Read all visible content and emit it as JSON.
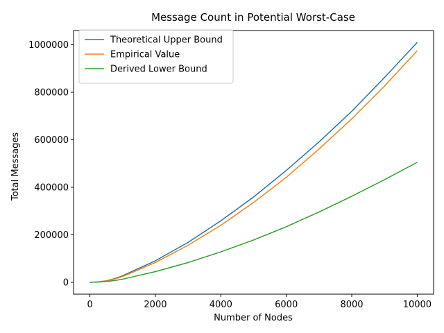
{
  "chart_data": {
    "type": "line",
    "title": "Message Count in Potential Worst-Case",
    "xlabel": "Number of Nodes",
    "ylabel": "Total Messages",
    "xlim": [
      -500,
      10500
    ],
    "ylim": [
      -50000,
      1060000
    ],
    "xticks": [
      0,
      2000,
      4000,
      6000,
      8000,
      10000
    ],
    "yticks": [
      0,
      200000,
      400000,
      600000,
      800000,
      1000000
    ],
    "grid": false,
    "legend_position": "top-left",
    "x": [
      0,
      100,
      200,
      300,
      400,
      500,
      600,
      700,
      800,
      900,
      1000,
      2000,
      3000,
      4000,
      5000,
      6000,
      7000,
      8000,
      9000,
      10000
    ],
    "series": [
      {
        "name": "Theoretical Upper Bound",
        "color": "#1f77b4",
        "values": [
          0,
          350,
          1200,
          2600,
          4500,
          6700,
          9800,
          13400,
          17500,
          22200,
          27500,
          90500,
          168000,
          259000,
          359000,
          471000,
          591000,
          720000,
          862000,
          1010000
        ]
      },
      {
        "name": "Empirical Value",
        "color": "#ff7f0e",
        "values": [
          0,
          300,
          1050,
          2300,
          4000,
          6000,
          8800,
          12000,
          15700,
          19800,
          24500,
          83000,
          156000,
          240000,
          336000,
          442000,
          561000,
          688000,
          826000,
          975000
        ]
      },
      {
        "name": "Derived Lower Bound",
        "color": "#2ca02c",
        "values": [
          0,
          250,
          700,
          1400,
          2400,
          3500,
          4900,
          6600,
          8500,
          10600,
          13000,
          45000,
          83000,
          128000,
          178000,
          234000,
          296000,
          362000,
          432000,
          505000
        ]
      }
    ]
  }
}
